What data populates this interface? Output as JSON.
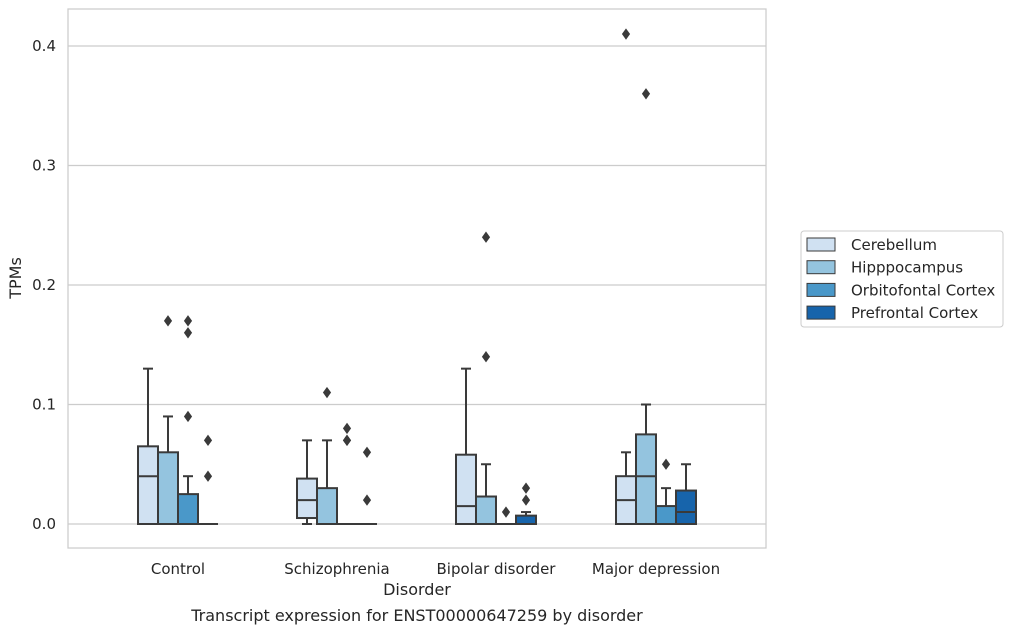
{
  "caption": "Transcript expression for ENST00000647259 by disorder",
  "chart_data": {
    "type": "box",
    "xlabel": "Disorder",
    "ylabel": "TPMs",
    "ylim": [
      -0.02,
      0.43
    ],
    "yticks": [
      0.0,
      0.1,
      0.2,
      0.3,
      0.4
    ],
    "ytick_labels": [
      "0.0",
      "0.1",
      "0.2",
      "0.3",
      "0.4"
    ],
    "grid": "horizontal",
    "legend_position": "right",
    "categories": [
      "Control",
      "Schizophrenia",
      "Bipolar disorder",
      "Major depression"
    ],
    "series": [
      {
        "name": "Cerebellum",
        "color": "#d0e1f2",
        "boxes": [
          {
            "q1": 0.0,
            "median": 0.04,
            "q3": 0.065,
            "whislo": 0.0,
            "whishi": 0.13,
            "fliers": []
          },
          {
            "q1": 0.005,
            "median": 0.02,
            "q3": 0.038,
            "whislo": 0.0,
            "whishi": 0.07,
            "fliers": []
          },
          {
            "q1": 0.0,
            "median": 0.015,
            "q3": 0.058,
            "whislo": 0.0,
            "whishi": 0.13,
            "fliers": []
          },
          {
            "q1": 0.0,
            "median": 0.02,
            "q3": 0.04,
            "whislo": 0.0,
            "whishi": 0.06,
            "fliers": [
              0.41
            ]
          }
        ]
      },
      {
        "name": "Hipppocampus",
        "color": "#94c4df",
        "boxes": [
          {
            "q1": 0.0,
            "median": 0.0,
            "q3": 0.06,
            "whislo": 0.0,
            "whishi": 0.09,
            "fliers": [
              0.17
            ]
          },
          {
            "q1": 0.0,
            "median": 0.0,
            "q3": 0.03,
            "whislo": 0.0,
            "whishi": 0.07,
            "fliers": [
              0.11
            ]
          },
          {
            "q1": 0.0,
            "median": 0.0,
            "q3": 0.023,
            "whislo": 0.0,
            "whishi": 0.05,
            "fliers": [
              0.14,
              0.24
            ]
          },
          {
            "q1": 0.0,
            "median": 0.04,
            "q3": 0.075,
            "whislo": 0.0,
            "whishi": 0.1,
            "fliers": [
              0.36
            ]
          }
        ]
      },
      {
        "name": "Orbitofontal Cortex",
        "color": "#4a98c9",
        "boxes": [
          {
            "q1": 0.0,
            "median": 0.0,
            "q3": 0.025,
            "whislo": 0.0,
            "whishi": 0.04,
            "fliers": [
              0.09,
              0.16,
              0.17
            ]
          },
          {
            "q1": 0.0,
            "median": 0.0,
            "q3": 0.0,
            "whislo": 0.0,
            "whishi": 0.0,
            "fliers": [
              0.07,
              0.07,
              0.08
            ]
          },
          {
            "q1": 0.0,
            "median": 0.0,
            "q3": 0.0,
            "whislo": 0.0,
            "whishi": 0.0,
            "fliers": [
              0.01
            ]
          },
          {
            "q1": 0.0,
            "median": 0.0,
            "q3": 0.015,
            "whislo": 0.0,
            "whishi": 0.03,
            "fliers": [
              0.05
            ]
          }
        ]
      },
      {
        "name": "Prefrontal Cortex",
        "color": "#1764ab",
        "boxes": [
          {
            "q1": 0.0,
            "median": 0.0,
            "q3": 0.0,
            "whislo": 0.0,
            "whishi": 0.0,
            "fliers": [
              0.04,
              0.07
            ]
          },
          {
            "q1": 0.0,
            "median": 0.0,
            "q3": 0.0,
            "whislo": 0.0,
            "whishi": 0.0,
            "fliers": [
              0.02,
              0.06
            ]
          },
          {
            "q1": 0.0,
            "median": 0.0,
            "q3": 0.007,
            "whislo": 0.0,
            "whishi": 0.01,
            "fliers": [
              0.02,
              0.03
            ]
          },
          {
            "q1": 0.0,
            "median": 0.01,
            "q3": 0.028,
            "whislo": 0.0,
            "whishi": 0.05,
            "fliers": []
          }
        ]
      }
    ]
  }
}
